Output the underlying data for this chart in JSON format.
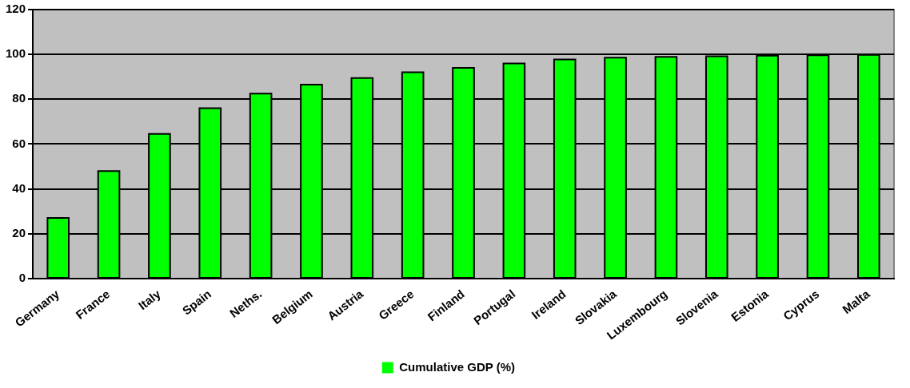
{
  "chart_data": {
    "type": "bar",
    "categories": [
      "Germany",
      "France",
      "Italy",
      "Spain",
      "Neths.",
      "Belgium",
      "Austria",
      "Greece",
      "Finland",
      "Portugal",
      "Ireland",
      "Slovakia",
      "Luxembourg",
      "Slovenia",
      "Estonia",
      "Cyprus",
      "Malta"
    ],
    "series": [
      {
        "name": "Cumulative GDP (%)",
        "color": "#00ff00",
        "values": [
          27,
          48,
          64.5,
          76,
          82.5,
          86.5,
          89.5,
          92,
          94,
          96,
          97.7,
          98.5,
          98.9,
          99.2,
          99.4,
          99.6,
          99.8
        ]
      }
    ],
    "ylim": [
      0,
      120
    ],
    "yticks": [
      0,
      20,
      40,
      60,
      80,
      100,
      120
    ],
    "grid": "y",
    "legend": "bottom"
  }
}
